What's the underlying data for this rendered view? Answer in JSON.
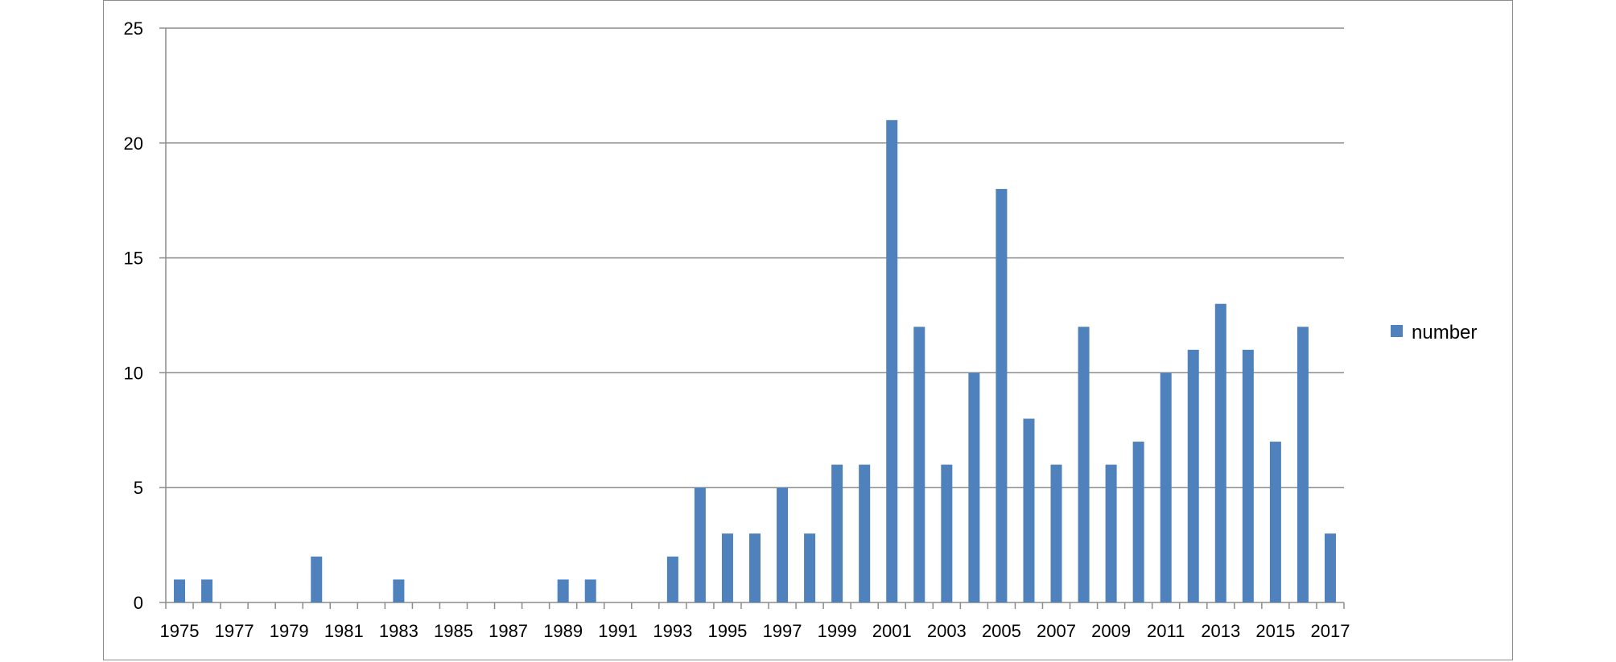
{
  "chart_data": {
    "type": "bar",
    "title": "",
    "xlabel": "",
    "ylabel": "",
    "ylim": [
      0,
      25
    ],
    "yticks": [
      0,
      5,
      10,
      15,
      20,
      25
    ],
    "grid": true,
    "legend_position": "right",
    "bar_color": "#4f81bd",
    "categories": [
      "1975",
      "1976",
      "1977",
      "1978",
      "1979",
      "1980",
      "1981",
      "1982",
      "1983",
      "1984",
      "1985",
      "1986",
      "1987",
      "1988",
      "1989",
      "1990",
      "1991",
      "1992",
      "1993",
      "1994",
      "1995",
      "1996",
      "1997",
      "1998",
      "1999",
      "2000",
      "2001",
      "2002",
      "2003",
      "2004",
      "2005",
      "2006",
      "2007",
      "2008",
      "2009",
      "2010",
      "2011",
      "2012",
      "2013",
      "2014",
      "2015",
      "2016",
      "2017"
    ],
    "xtick_labels": [
      "1975",
      "1977",
      "1979",
      "1981",
      "1983",
      "1985",
      "1987",
      "1989",
      "1991",
      "1993",
      "1995",
      "1997",
      "1999",
      "2001",
      "2003",
      "2005",
      "2007",
      "2009",
      "2011",
      "2013",
      "2015",
      "2017"
    ],
    "series": [
      {
        "name": "number",
        "values": [
          1,
          1,
          0,
          0,
          0,
          2,
          0,
          0,
          1,
          0,
          0,
          0,
          0,
          0,
          1,
          1,
          0,
          0,
          2,
          5,
          3,
          3,
          5,
          3,
          6,
          6,
          21,
          12,
          6,
          10,
          18,
          8,
          6,
          12,
          6,
          7,
          10,
          11,
          13,
          11,
          7,
          12,
          3
        ]
      }
    ]
  }
}
